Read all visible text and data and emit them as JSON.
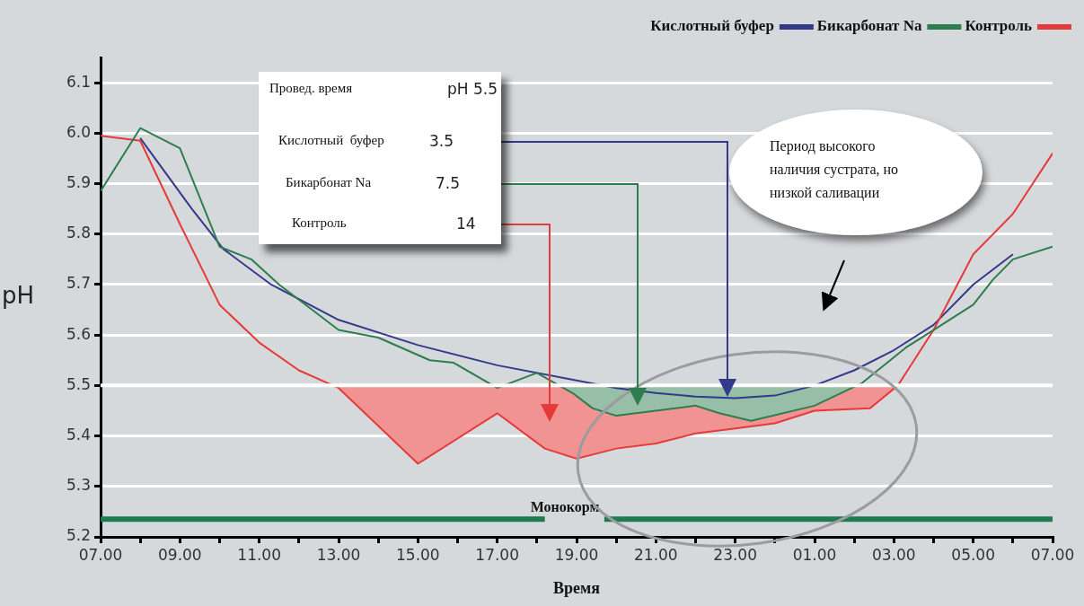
{
  "chart_data": {
    "type": "line",
    "xlabel": "Время",
    "ylabel": "pH",
    "legend": "top right",
    "grid": "y",
    "xlim": [
      "--01-01T07:00",
      "--01-02T07:00"
    ],
    "ylim": [
      5.2,
      6.15
    ],
    "xticks": [
      {
        "value": "--01-01T07:00",
        "label": "07.00"
      },
      {
        "value": "--01-01T08:00",
        "label": null
      },
      {
        "value": "--01-01T09:00",
        "label": "09.00"
      },
      {
        "value": "--01-01T10:00",
        "label": null
      },
      {
        "value": "--01-01T11:00",
        "label": "11.00"
      },
      {
        "value": "--01-01T12:00",
        "label": null
      },
      {
        "value": "--01-01T13:00",
        "label": "13.00"
      },
      {
        "value": "--01-01T14:00",
        "label": null
      },
      {
        "value": "--01-01T15:00",
        "label": "15.00"
      },
      {
        "value": "--01-01T16:00",
        "label": null
      },
      {
        "value": "--01-01T17:00",
        "label": "17.00"
      },
      {
        "value": "--01-01T18:00",
        "label": null
      },
      {
        "value": "--01-01T19:00",
        "label": "19.00"
      },
      {
        "value": "--01-01T20:00",
        "label": null
      },
      {
        "value": "--01-01T21:00",
        "label": "21.00"
      },
      {
        "value": "--01-01T22:00",
        "label": null
      },
      {
        "value": "--01-01T23:00",
        "label": "23.00"
      },
      {
        "value": "--01-02T00:00",
        "label": null
      },
      {
        "value": "--01-02T01:00",
        "label": "01.00"
      },
      {
        "value": "--01-02T02:00",
        "label": null
      },
      {
        "value": "--01-02T03:00",
        "label": "03.00"
      },
      {
        "value": "--01-02T04:00",
        "label": null
      },
      {
        "value": "--01-02T05:00",
        "label": "05.00"
      },
      {
        "value": "--01-02T06:00",
        "label": null
      },
      {
        "value": "--01-02T07:00",
        "label": "07.00"
      }
    ],
    "yticks": [
      5.2,
      5.3,
      5.4,
      5.5,
      5.6,
      5.7,
      5.8,
      5.9,
      {
        "value": 6,
        "label": "6.0"
      },
      6.1
    ],
    "series": [
      {
        "name": "Кислотный буфер",
        "color": "#34398a",
        "x": [
          "--01-01T08:00",
          "--01-01T09:18",
          "--01-01T10:06",
          "--01-01T11:18",
          "--01-01T13:00",
          "--01-01T15:00",
          "--01-01T17:00",
          "--01-01T19:00",
          "--01-01T20:00",
          "--01-01T21:00",
          "--01-01T22:00",
          "--01-01T23:00",
          "--01-02T00:00",
          "--01-02T01:00",
          "--01-02T02:00",
          "--01-02T03:00",
          "--01-02T04:00",
          "--01-02T05:00",
          "--01-02T06:00"
        ],
        "values": [
          5.99,
          5.85,
          5.77,
          5.7,
          5.63,
          5.58,
          5.54,
          5.51,
          5.495,
          5.485,
          5.478,
          5.475,
          5.48,
          5.5,
          5.53,
          5.57,
          5.62,
          5.7,
          5.76
        ]
      },
      {
        "name": "Бикарбонат Na",
        "color": "#2e7d4f",
        "x": [
          "--01-01T07:00",
          "--01-01T08:00",
          "--01-01T09:00",
          "--01-01T10:00",
          "--01-01T10:48",
          "--01-01T11:30",
          "--01-01T13:00",
          "--01-01T14:00",
          "--01-01T15:18",
          "--01-01T15:54",
          "--01-01T17:00",
          "--01-01T18:00",
          "--01-01T18:54",
          "--01-01T19:24",
          "--01-01T20:00",
          "--01-01T22:00",
          "--01-01T22:36",
          "--01-01T23:24",
          "--01-02T01:00",
          "--01-02T02:12",
          "--01-02T03:18",
          "--01-02T04:00",
          "--01-02T05:00",
          "--01-02T05:30",
          "--01-02T06:00",
          "--01-02T07:00"
        ],
        "values": [
          5.885,
          6.01,
          5.97,
          5.775,
          5.75,
          5.7,
          5.61,
          5.595,
          5.55,
          5.545,
          5.495,
          5.525,
          5.485,
          5.455,
          5.44,
          5.46,
          5.445,
          5.43,
          5.46,
          5.505,
          5.575,
          5.61,
          5.66,
          5.71,
          5.75,
          5.775
        ]
      },
      {
        "name": "Контроль",
        "color": "#e53a3a",
        "x": [
          "--01-01T07:00",
          "--01-01T08:00",
          "--01-01T09:00",
          "--01-01T10:00",
          "--01-01T11:00",
          "--01-01T12:00",
          "--01-01T13:00",
          "--01-01T15:00",
          "--01-01T17:00",
          "--01-01T18:12",
          "--01-01T19:00",
          "--01-01T20:00",
          "--01-01T21:00",
          "--01-01T22:00",
          "--01-01T23:00",
          "--01-02T00:00",
          "--01-02T01:00",
          "--01-02T02:24",
          "--01-02T03:06",
          "--01-02T04:00",
          "--01-02T05:00",
          "--01-02T06:00",
          "--01-02T07:00"
        ],
        "values": [
          5.995,
          5.985,
          5.82,
          5.66,
          5.585,
          5.53,
          5.495,
          5.345,
          5.445,
          5.375,
          5.355,
          5.375,
          5.385,
          5.405,
          5.415,
          5.425,
          5.45,
          5.455,
          5.5,
          5.61,
          5.76,
          5.84,
          5.96
        ]
      },
      {
        "name": "Монокорм",
        "type": "line",
        "color": "#1f7a4f",
        "x": [
          "--01-01T07:00",
          "--01-01T18:12",
          "--01-01T19:00",
          "--01-01T19:42",
          "--01-02T07:00"
        ],
        "values": [
          5.235,
          5.235,
          null,
          5.235,
          5.235
        ]
      }
    ],
    "ref_lines": [
      {
        "axis": "y",
        "value": 5.5,
        "color": "#ffffff"
      }
    ],
    "annotations": [
      "Провед. время",
      "pH 5.5",
      "Кислотный  буфер",
      "3.5",
      "Бикарбонат Na",
      "7.5",
      "Контроль",
      "14",
      "Период высокого наличия сустрата, но низкой саливации"
    ]
  }
}
